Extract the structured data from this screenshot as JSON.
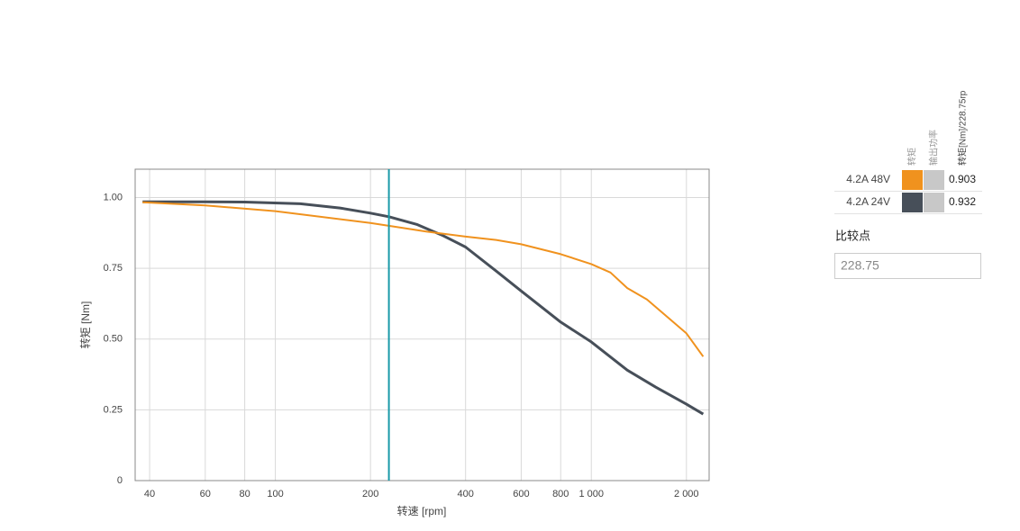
{
  "chart_data": {
    "type": "line",
    "x_label": "转速 [rpm]",
    "y_label": "转矩 [Nm]",
    "xscale": "log",
    "xlim": [
      36,
      2360
    ],
    "xticks": [
      40,
      60,
      80,
      100,
      200,
      400,
      600,
      800,
      {
        "value": 1000,
        "label": "1 000"
      },
      {
        "value": 2000,
        "label": "2 000"
      }
    ],
    "ylim": [
      0,
      1.1
    ],
    "yticks": [
      0,
      0.25,
      {
        "value": 0.5,
        "label": "0.50"
      },
      0.75,
      {
        "value": 1,
        "label": "1.00"
      }
    ],
    "grid": true,
    "cursor": 228.75,
    "cursor_color": "#1a9aa8",
    "legend_headers": [
      "转矩",
      "输出功率",
      "转矩[Nm]/228.75rp"
    ],
    "compare_label": "比较点",
    "series": [
      {
        "name": "4.2A  48V",
        "color": "#f0921e",
        "readout": "0.903",
        "x": [
          38,
          60,
          100,
          200,
          300,
          400,
          500,
          600,
          800,
          1000,
          1150,
          1300,
          1500,
          2000,
          2260
        ],
        "values": [
          0.983,
          0.972,
          0.952,
          0.91,
          0.88,
          0.862,
          0.85,
          0.835,
          0.8,
          0.765,
          0.735,
          0.68,
          0.64,
          0.52,
          0.438
        ]
      },
      {
        "name": "4.2A  24V",
        "color": "#474f59",
        "readout": "0.932",
        "x": [
          38,
          60,
          80,
          120,
          160,
          200,
          228.75,
          280,
          340,
          400,
          500,
          600,
          800,
          1000,
          1300,
          1600,
          2000,
          2260
        ],
        "values": [
          0.985,
          0.985,
          0.984,
          0.978,
          0.963,
          0.945,
          0.932,
          0.905,
          0.865,
          0.825,
          0.74,
          0.67,
          0.56,
          0.49,
          0.39,
          0.33,
          0.27,
          0.235
        ]
      }
    ]
  }
}
